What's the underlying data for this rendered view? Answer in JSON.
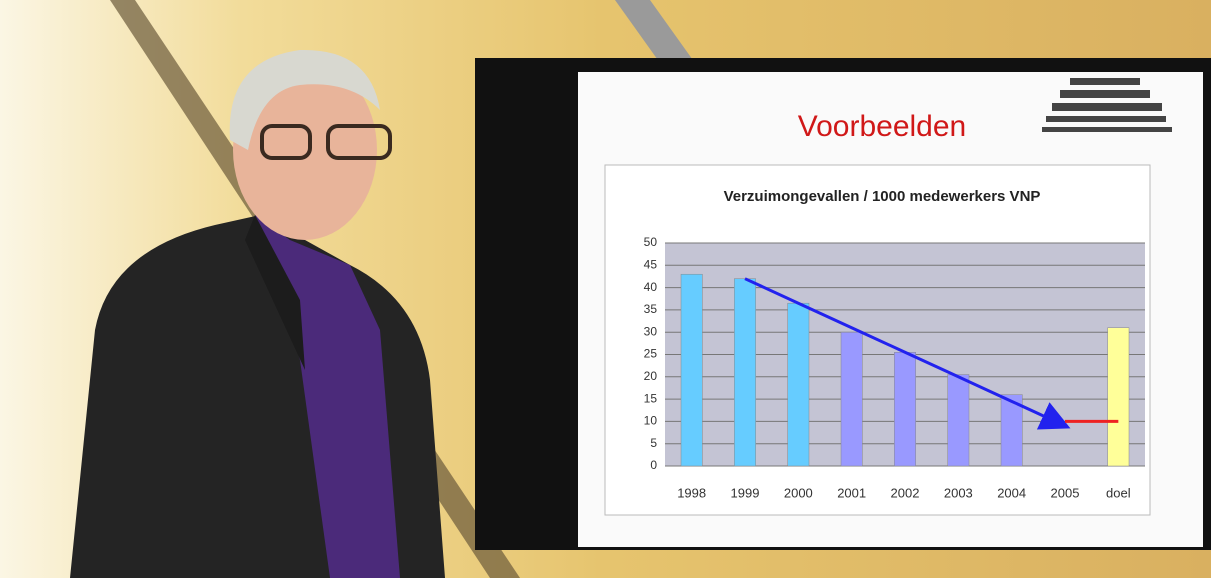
{
  "slide": {
    "title": "Voorbeelden"
  },
  "chart_data": {
    "type": "bar",
    "title": "Verzuimongevallen / 1000 medewerkers VNP",
    "categories": [
      "1998",
      "1999",
      "2000",
      "2001",
      "2002",
      "2003",
      "2004",
      "2005",
      "doel"
    ],
    "values": [
      43,
      42,
      36.5,
      30,
      25.5,
      20.5,
      16,
      null,
      31
    ],
    "colors": [
      "#66ccff",
      "#66ccff",
      "#66ccff",
      "#9999ff",
      "#9999ff",
      "#9999ff",
      "#9999ff",
      "#9999ff",
      "#ffff99"
    ],
    "lines": [
      {
        "color": "#2222ee",
        "values": [
          null,
          42,
          36.5,
          31,
          25.5,
          20,
          14.5,
          9,
          null
        ]
      },
      {
        "color": "#ee2222",
        "values": [
          null,
          null,
          null,
          null,
          null,
          null,
          null,
          10,
          10
        ]
      }
    ],
    "ylim": [
      0,
      50
    ],
    "yticks": [
      0,
      5,
      10,
      15,
      20,
      25,
      30,
      35,
      40,
      45,
      50
    ],
    "grid": true
  }
}
